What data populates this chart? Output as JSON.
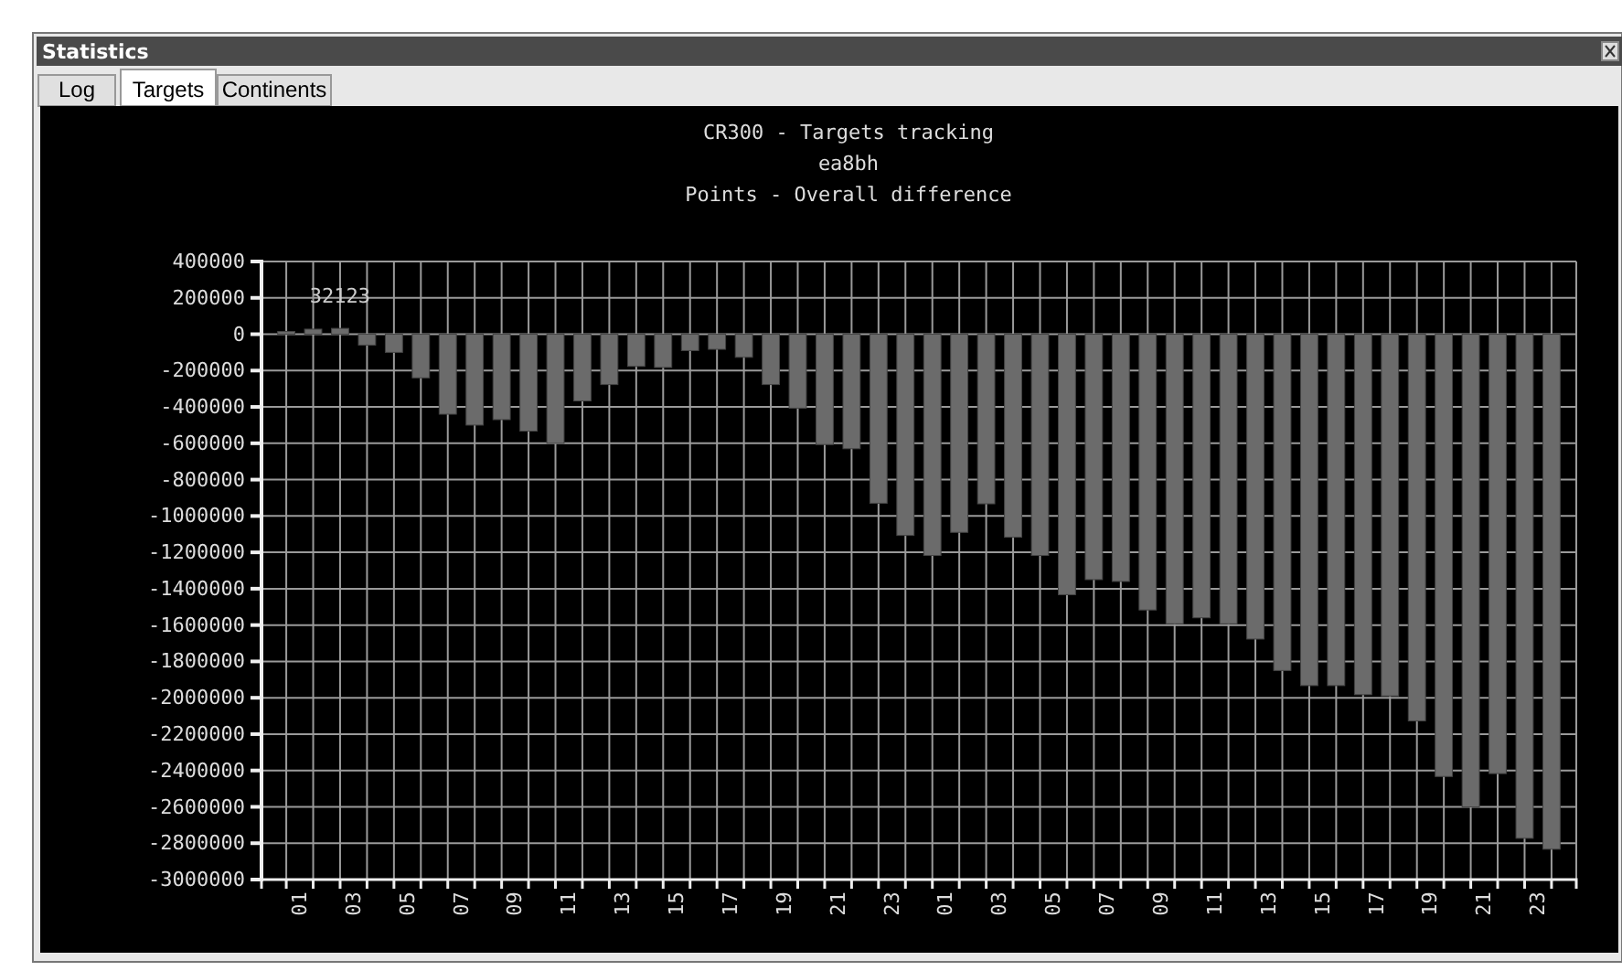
{
  "chart_data": {
    "type": "bar",
    "title": "CR300 - Targets tracking",
    "subtitle": "ea8bh",
    "ylabel": "Points - Overall difference",
    "annotations": [
      "Statistics",
      "Log",
      "Targets",
      "Continents"
    ],
    "categories": [
      null,
      "01",
      null,
      "03",
      null,
      "05",
      null,
      "07",
      null,
      "09",
      null,
      "11",
      null,
      "13",
      null,
      "15",
      null,
      "17",
      null,
      "19",
      null,
      "21",
      null,
      "23",
      null,
      "01",
      null,
      "03",
      null,
      "05",
      null,
      "07",
      null,
      "09",
      null,
      "11",
      null,
      "13",
      null,
      "15",
      null,
      "17",
      null,
      "19",
      null,
      "21",
      null,
      "23"
    ],
    "values": [
      15000,
      28000,
      32123,
      -60000,
      -100000,
      -240000,
      -440000,
      -500000,
      -470000,
      -533000,
      -600000,
      -367000,
      -277000,
      -177000,
      -183000,
      -90000,
      -83000,
      -127000,
      -277000,
      -407000,
      -607000,
      -630000,
      -930000,
      -1107000,
      -1217000,
      -1090000,
      -933000,
      -1117000,
      -1217000,
      -1433000,
      -1350000,
      -1360000,
      -1517000,
      -1593000,
      -1560000,
      -1593000,
      -1677000,
      -1850000,
      -1933000,
      -1933000,
      -1983000,
      -1990000,
      -2127000,
      -2433000,
      -2600000,
      -2417000,
      -2773000,
      -2833000
    ],
    "value_labels": [
      null,
      null,
      "32123",
      null,
      null,
      null,
      null,
      null,
      null,
      null,
      null,
      null,
      null,
      null,
      null,
      null,
      null,
      null,
      null,
      null,
      null,
      null,
      null,
      null,
      null,
      null,
      null,
      null,
      null,
      null,
      null,
      null,
      null,
      null,
      null,
      null,
      null,
      null,
      null,
      null,
      null,
      null,
      null,
      null,
      null,
      null,
      null,
      null
    ],
    "color": "#6b6b6b",
    "ylim": [
      -3000000,
      400000
    ],
    "yticks": [
      -3000000,
      -2800000,
      -2600000,
      -2400000,
      -2200000,
      -2000000,
      -1800000,
      -1600000,
      -1400000,
      -1200000,
      -1000000,
      -800000,
      -600000,
      -400000,
      -200000,
      0,
      200000,
      400000
    ],
    "grid": true
  }
}
